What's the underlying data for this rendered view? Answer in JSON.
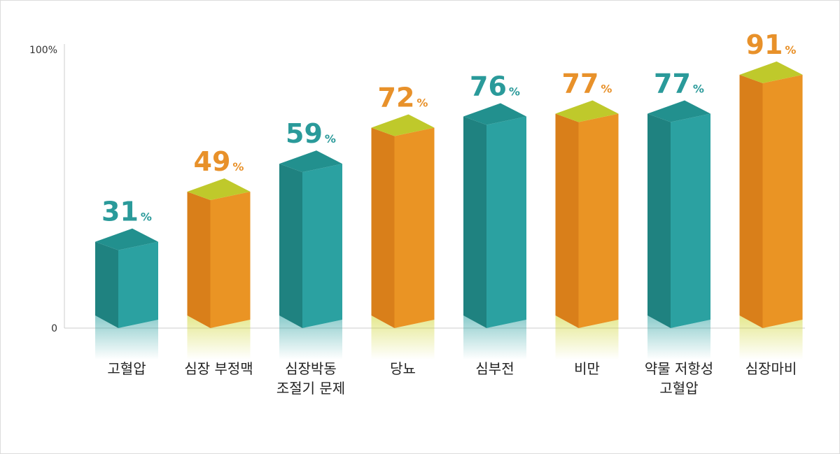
{
  "colors": {
    "teal_front": "#2ba1a1",
    "teal_side": "#1f8280",
    "teal_top": "#22908e",
    "orange_front": "#ea9424",
    "orange_side": "#d97f1a",
    "orange_top": "#bfc92b",
    "teal_label": "#2a9a9a",
    "orange_label": "#e8912a",
    "axis": "#cccccc"
  },
  "chart_data": {
    "type": "bar",
    "title": "",
    "xlabel": "",
    "ylabel": "",
    "ylim": [
      0,
      100
    ],
    "y_ticks": [
      {
        "value": 0,
        "label": "0"
      },
      {
        "value": 100,
        "label": "100%"
      }
    ],
    "value_suffix": "%",
    "grid": false,
    "legend": "none",
    "categories": [
      {
        "lines": [
          "고혈압"
        ],
        "value": 31,
        "value_label": "31",
        "color": "teal"
      },
      {
        "lines": [
          "심장 부정맥"
        ],
        "value": 49,
        "value_label": "49",
        "color": "orange"
      },
      {
        "lines": [
          "심장박동",
          "조절기 문제"
        ],
        "value": 59,
        "value_label": "59",
        "color": "teal"
      },
      {
        "lines": [
          "당뇨"
        ],
        "value": 72,
        "value_label": "72",
        "color": "orange"
      },
      {
        "lines": [
          "심부전"
        ],
        "value": 76,
        "value_label": "76",
        "color": "teal"
      },
      {
        "lines": [
          "비만"
        ],
        "value": 77,
        "value_label": "77",
        "color": "orange"
      },
      {
        "lines": [
          "약물 저항성",
          "고혈압"
        ],
        "value": 77,
        "value_label": "77",
        "color": "teal"
      },
      {
        "lines": [
          "심장마비"
        ],
        "value": 91,
        "value_label": "91",
        "color": "orange"
      }
    ]
  }
}
